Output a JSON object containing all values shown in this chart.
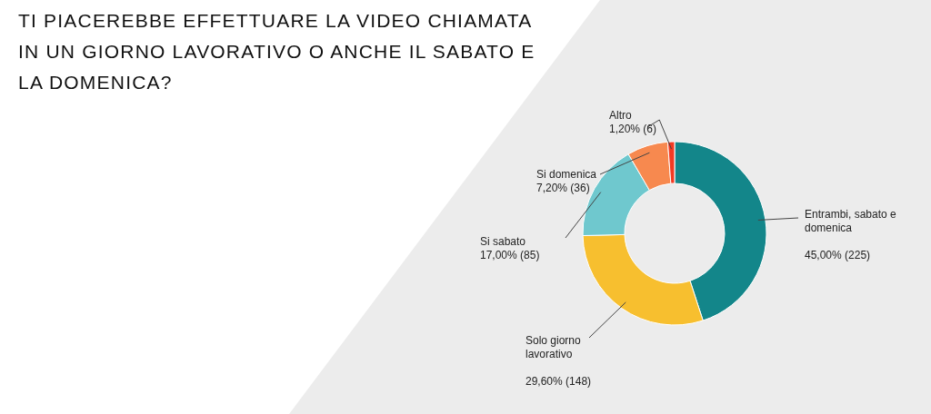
{
  "chart_data": {
    "type": "donut",
    "title": "TI PIACEREBBE EFFETTUARE LA VIDEO CHIAMATA IN UN GIORNO LAVORATIVO O ANCHE IL SABATO E LA DOMENICA?",
    "categories": [
      "Entrambi, sabato e domenica",
      "Solo giorno lavorativo",
      "Si sabato",
      "Si domenica",
      "Altro"
    ],
    "values": [
      45,
      29.6,
      17,
      7.2,
      1.2
    ],
    "value_labels": [
      "45,00% (225)",
      "29,60% (148)",
      "17,00% (85)",
      "7,20% (36)",
      "1,20% (6)"
    ],
    "colors": [
      "#13868a",
      "#f7bf2f",
      "#6fc8ce",
      "#f7894f",
      "#f33a22"
    ]
  }
}
